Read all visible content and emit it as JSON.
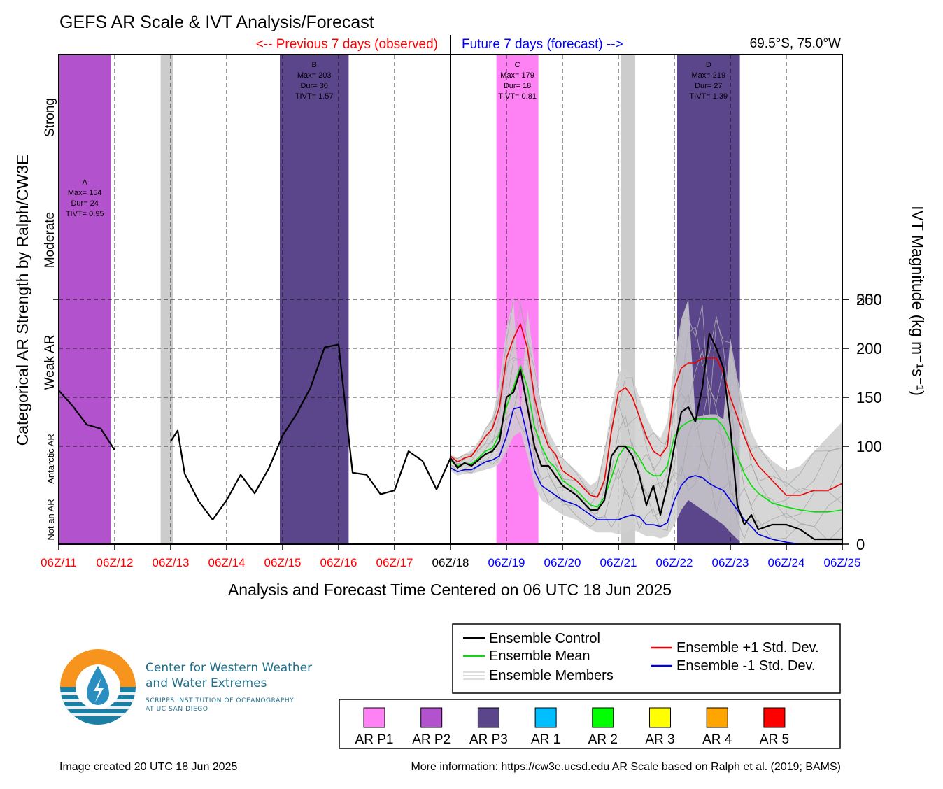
{
  "chart_data": {
    "type": "line",
    "title": "GEFS AR Scale & IVT Analysis/Forecast",
    "location": "69.5°S, 75.0°W",
    "observed_label": "<-- Previous 7 days (observed)",
    "forecast_label": "Future 7 days (forecast) -->",
    "xlabel": "Analysis and Forecast Time Centered on 06 UTC 18 Jun 2025",
    "ylabel_left": "Categorical AR Strength by Ralph/CW3E",
    "ylabel_right": "IVT Magnitude (kg m⁻¹s⁻¹)",
    "x_ticks": [
      "06Z/11",
      "06Z/12",
      "06Z/13",
      "06Z/14",
      "06Z/15",
      "06Z/16",
      "06Z/17",
      "06Z/18",
      "06Z/19",
      "06Z/20",
      "06Z/21",
      "06Z/22",
      "06Z/23",
      "06Z/24",
      "06Z/25"
    ],
    "x_tick_colors": [
      "#ff0000",
      "#ff0000",
      "#ff0000",
      "#ff0000",
      "#ff0000",
      "#ff0000",
      "#ff0000",
      "#000000",
      "#0000ff",
      "#0000ff",
      "#0000ff",
      "#0000ff",
      "#0000ff",
      "#0000ff",
      "#0000ff"
    ],
    "y_ticks": [
      0,
      100,
      150,
      200,
      250,
      500
    ],
    "category_labels": [
      "Not an AR",
      "Antarctic AR",
      "Weak AR",
      "Moderate",
      "Strong"
    ],
    "ar_events": [
      {
        "label": "A",
        "max": "Max= 154",
        "dur": "Dur= 24",
        "tivt": "TIVT= 0.95",
        "start_day": 0.0,
        "end_day": 0.93,
        "color": "#b252cc"
      },
      {
        "label": "B",
        "max": "Max= 203",
        "dur": "Dur= 30",
        "tivt": "TIVT= 1.57",
        "start_day": 3.95,
        "end_day": 5.18,
        "color": "#5b468c"
      },
      {
        "label": "C",
        "max": "Max= 179",
        "dur": "Dur= 18",
        "tivt": "TIVT= 0.81",
        "start_day": 7.82,
        "end_day": 8.57,
        "color": "#ff82f5"
      },
      {
        "label": "D",
        "max": "Max= 219",
        "dur": "Dur= 27",
        "tivt": "TIVT= 1.39",
        "start_day": 11.05,
        "end_day": 12.17,
        "color": "#5b468c"
      }
    ],
    "gray_bands": [
      {
        "start_day": 1.82,
        "end_day": 2.05
      },
      {
        "start_day": 10.05,
        "end_day": 10.3
      }
    ],
    "series": [
      {
        "name": "Ensemble Control",
        "color": "#000000",
        "x": [
          0,
          0.25,
          0.5,
          0.75,
          1.0,
          2.0,
          2.125,
          2.25,
          2.5,
          2.75,
          3.0,
          3.25,
          3.5,
          3.75,
          4.0,
          4.25,
          4.5,
          4.75,
          5.0,
          5.25,
          5.5,
          5.75,
          6.0,
          6.25,
          6.5,
          6.75,
          7.0,
          7.125,
          7.25,
          7.375,
          7.5,
          7.625,
          7.75,
          7.875,
          8.0,
          8.125,
          8.25,
          8.375,
          8.5,
          8.625,
          8.75,
          9.0,
          9.25,
          9.5,
          9.625,
          9.75,
          9.875,
          10.0,
          10.125,
          10.25,
          10.375,
          10.5,
          10.625,
          10.75,
          10.875,
          11.0,
          11.125,
          11.25,
          11.375,
          11.5,
          11.625,
          11.75,
          11.875,
          12.0,
          12.125,
          12.25,
          12.375,
          12.5,
          12.75,
          13.0,
          13.25,
          13.5,
          13.75,
          14.0
        ],
        "y": [
          157,
          141,
          122,
          118,
          96,
          105,
          116,
          72,
          44,
          25,
          45,
          71,
          52,
          77,
          111,
          133,
          160,
          201,
          204,
          73,
          71,
          51,
          55,
          95,
          85,
          56,
          88,
          78,
          83,
          80,
          86,
          92,
          95,
          105,
          150,
          155,
          178,
          140,
          100,
          80,
          80,
          60,
          50,
          35,
          35,
          45,
          90,
          100,
          100,
          90,
          70,
          40,
          60,
          30,
          60,
          100,
          135,
          140,
          125,
          160,
          215,
          200,
          180,
          120,
          40,
          20,
          30,
          15,
          20,
          20,
          15,
          5,
          5,
          5
        ]
      },
      {
        "name": "Ensemble Mean",
        "color": "#00e000",
        "x": [
          7.0,
          7.125,
          7.25,
          7.375,
          7.5,
          7.625,
          7.75,
          7.875,
          8.0,
          8.125,
          8.25,
          8.375,
          8.5,
          8.625,
          8.75,
          8.875,
          9.0,
          9.25,
          9.5,
          9.625,
          9.75,
          9.875,
          10.0,
          10.125,
          10.25,
          10.375,
          10.5,
          10.625,
          10.75,
          10.875,
          11.0,
          11.125,
          11.25,
          11.375,
          11.5,
          11.625,
          11.75,
          11.875,
          12.0,
          12.125,
          12.25,
          12.375,
          12.5,
          12.75,
          13.0,
          13.25,
          13.5,
          13.75,
          14.0
        ],
        "y": [
          85,
          80,
          82,
          82,
          88,
          95,
          98,
          112,
          140,
          160,
          182,
          160,
          120,
          100,
          85,
          78,
          65,
          55,
          40,
          38,
          48,
          68,
          90,
          100,
          98,
          88,
          75,
          70,
          70,
          80,
          110,
          120,
          125,
          128,
          128,
          128,
          128,
          120,
          105,
          90,
          72,
          60,
          52,
          42,
          38,
          35,
          33,
          33,
          35
        ]
      },
      {
        "name": "Ensemble +1 Std. Dev.",
        "color": "#ee0000",
        "x": [
          7.0,
          7.125,
          7.25,
          7.375,
          7.5,
          7.625,
          7.75,
          7.875,
          8.0,
          8.125,
          8.25,
          8.375,
          8.5,
          8.625,
          8.75,
          8.875,
          9.0,
          9.25,
          9.5,
          9.625,
          9.75,
          9.875,
          10.0,
          10.125,
          10.25,
          10.375,
          10.5,
          10.625,
          10.75,
          10.875,
          11.0,
          11.125,
          11.25,
          11.375,
          11.5,
          11.625,
          11.75,
          11.875,
          12.0,
          12.125,
          12.25,
          12.375,
          12.5,
          12.75,
          13.0,
          13.25,
          13.5,
          13.75,
          14.0
        ],
        "y": [
          90,
          84,
          88,
          90,
          100,
          110,
          118,
          140,
          190,
          210,
          225,
          200,
          150,
          120,
          100,
          92,
          75,
          65,
          50,
          48,
          65,
          115,
          155,
          160,
          150,
          130,
          110,
          95,
          90,
          100,
          160,
          180,
          185,
          185,
          190,
          190,
          190,
          175,
          150,
          130,
          110,
          92,
          80,
          65,
          50,
          50,
          55,
          55,
          62
        ]
      },
      {
        "name": "Ensemble -1 Std. Dev.",
        "color": "#0000dd",
        "x": [
          7.0,
          7.125,
          7.25,
          7.375,
          7.5,
          7.625,
          7.75,
          7.875,
          8.0,
          8.125,
          8.25,
          8.375,
          8.5,
          8.625,
          8.75,
          8.875,
          9.0,
          9.25,
          9.5,
          9.625,
          9.75,
          9.875,
          10.0,
          10.125,
          10.25,
          10.375,
          10.5,
          10.625,
          10.75,
          10.875,
          11.0,
          11.125,
          11.25,
          11.375,
          11.5,
          11.625,
          11.75,
          11.875,
          12.0,
          12.125,
          12.25,
          12.375,
          12.5,
          12.75,
          13.0,
          13.25,
          13.5,
          13.75,
          14.0
        ],
        "y": [
          78,
          74,
          76,
          76,
          80,
          84,
          86,
          90,
          110,
          138,
          140,
          110,
          75,
          60,
          55,
          50,
          45,
          40,
          30,
          25,
          25,
          25,
          25,
          28,
          30,
          28,
          20,
          20,
          18,
          22,
          45,
          60,
          68,
          70,
          68,
          62,
          58,
          55,
          45,
          35,
          25,
          18,
          10,
          5,
          2,
          0,
          0,
          0,
          0
        ]
      }
    ],
    "members_label": "Ensemble Members",
    "members_color": "#bbbbbb",
    "members_band": {
      "x": [
        7.0,
        7.125,
        7.25,
        7.375,
        7.5,
        7.625,
        7.75,
        7.875,
        8.0,
        8.125,
        8.25,
        8.375,
        8.5,
        8.625,
        8.75,
        8.875,
        9.0,
        9.25,
        9.5,
        9.625,
        9.75,
        9.875,
        10.0,
        10.125,
        10.25,
        10.375,
        10.5,
        10.625,
        10.75,
        10.875,
        11.0,
        11.125,
        11.25,
        11.375,
        11.5,
        11.625,
        11.75,
        11.875,
        12.0,
        12.125,
        12.25,
        12.375,
        12.5,
        12.75,
        13.0,
        13.25,
        13.5,
        13.75,
        14.0
      ],
      "upper": [
        92,
        88,
        92,
        96,
        105,
        118,
        130,
        165,
        220,
        250,
        265,
        240,
        185,
        140,
        115,
        102,
        88,
        75,
        60,
        65,
        95,
        140,
        175,
        180,
        170,
        150,
        130,
        115,
        108,
        125,
        190,
        230,
        250,
        260,
        262,
        265,
        265,
        255,
        210,
        170,
        140,
        115,
        100,
        85,
        75,
        80,
        95,
        110,
        125
      ],
      "lower": [
        75,
        70,
        72,
        72,
        74,
        76,
        78,
        82,
        95,
        110,
        115,
        90,
        60,
        45,
        40,
        35,
        30,
        25,
        15,
        12,
        12,
        12,
        10,
        12,
        15,
        12,
        8,
        8,
        6,
        8,
        20,
        35,
        45,
        40,
        35,
        30,
        25,
        20,
        12,
        5,
        0,
        0,
        0,
        0,
        0,
        0,
        0,
        0,
        0
      ]
    },
    "legend_colors": [
      {
        "label": "AR P1",
        "color": "#ff82f5"
      },
      {
        "label": "AR P2",
        "color": "#b252cc"
      },
      {
        "label": "AR P3",
        "color": "#5b468c"
      },
      {
        "label": "AR 1",
        "color": "#00bfff"
      },
      {
        "label": "AR 2",
        "color": "#00ff00"
      },
      {
        "label": "AR 3",
        "color": "#ffff00"
      },
      {
        "label": "AR 4",
        "color": "#ffa500"
      },
      {
        "label": "AR 5",
        "color": "#ff0000"
      }
    ]
  },
  "logo": {
    "line1": "Center for Western Weather",
    "line2": "and Water Extremes",
    "line3": "SCRIPPS INSTITUTION OF OCEANOGRAPHY",
    "line4": "AT UC SAN DIEGO"
  },
  "footer": {
    "created": "Image created 20 UTC 18 Jun 2025",
    "info": "More information: https://cw3e.ucsd.edu AR Scale based on Ralph et al. (2019; BAMS)"
  }
}
